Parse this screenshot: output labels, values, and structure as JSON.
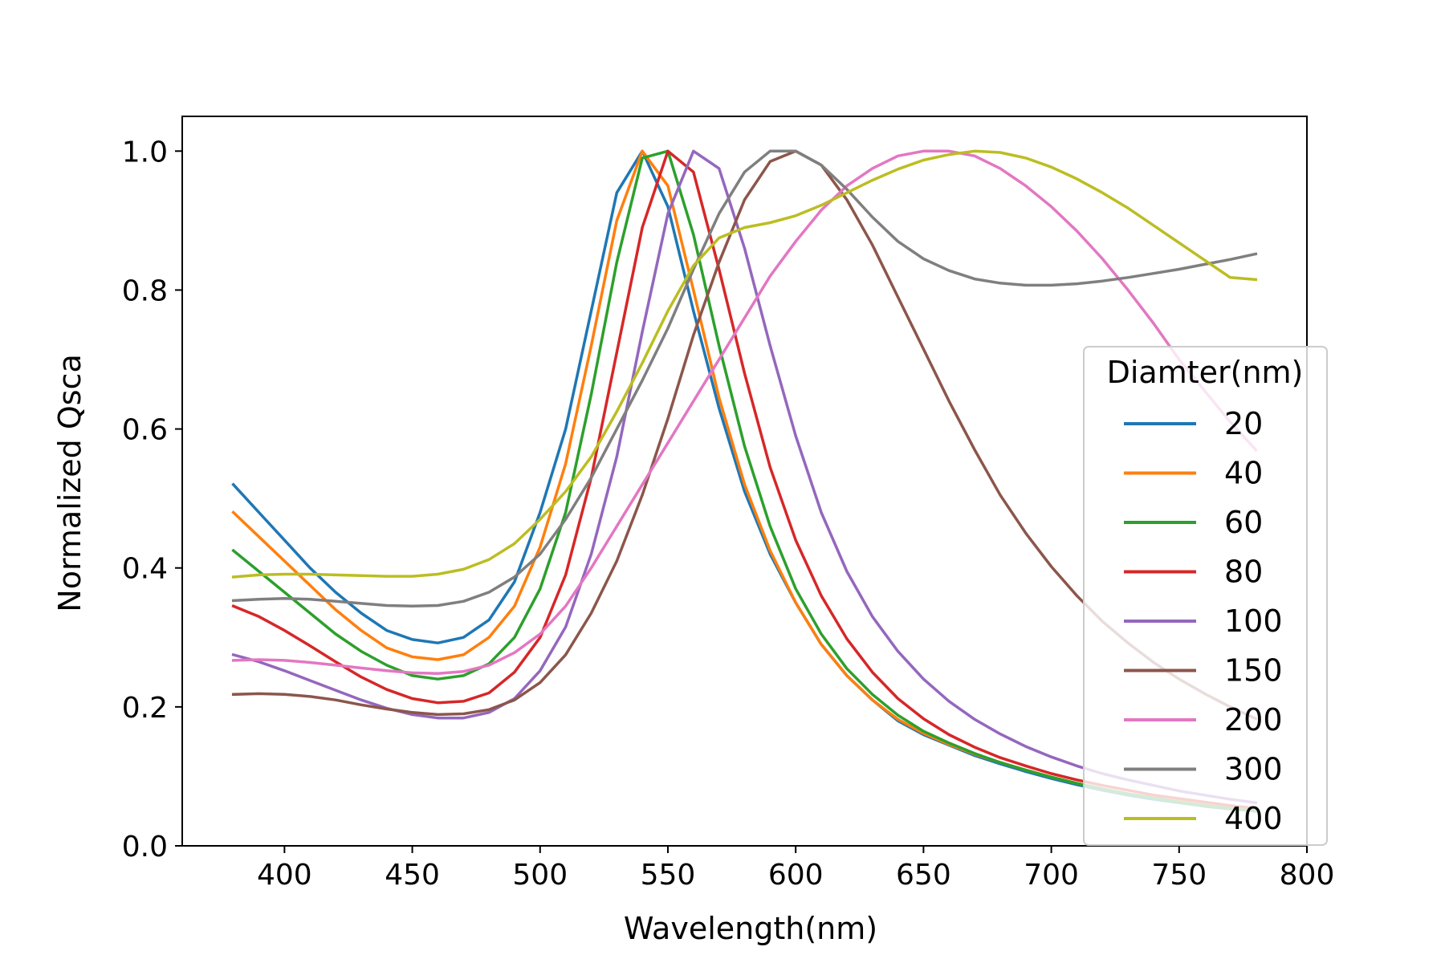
{
  "chart_data": {
    "type": "line",
    "title": "",
    "xlabel": "Wavelength(nm)",
    "ylabel": "Normalized Qsca",
    "xlim": [
      360,
      800
    ],
    "ylim": [
      0.0,
      1.05
    ],
    "xticks": [
      400,
      450,
      500,
      550,
      600,
      650,
      700,
      750,
      800
    ],
    "yticks": [
      0.0,
      0.2,
      0.4,
      0.6,
      0.8,
      1.0
    ],
    "xtick_labels": [
      "400",
      "450",
      "500",
      "550",
      "600",
      "650",
      "700",
      "750",
      "800"
    ],
    "ytick_labels": [
      "0.0",
      "0.2",
      "0.4",
      "0.6",
      "0.8",
      "1.0"
    ],
    "grid": false,
    "legend": {
      "title": "Diamter(nm)",
      "position": "center-right"
    },
    "x": [
      380,
      390,
      400,
      410,
      420,
      430,
      440,
      450,
      460,
      470,
      480,
      490,
      500,
      510,
      520,
      530,
      540,
      550,
      560,
      570,
      580,
      590,
      600,
      610,
      620,
      630,
      640,
      650,
      660,
      670,
      680,
      690,
      700,
      710,
      720,
      730,
      740,
      750,
      760,
      770,
      780
    ],
    "series": [
      {
        "name": "20",
        "color": "#1f77b4",
        "values": [
          0.52,
          0.48,
          0.44,
          0.4,
          0.365,
          0.335,
          0.31,
          0.297,
          0.292,
          0.3,
          0.325,
          0.38,
          0.48,
          0.6,
          0.77,
          0.94,
          1.0,
          0.92,
          0.77,
          0.63,
          0.51,
          0.42,
          0.35,
          0.29,
          0.245,
          0.21,
          0.18,
          0.16,
          0.145,
          0.13,
          0.118,
          0.107,
          0.097,
          0.088,
          0.08,
          0.073,
          0.067,
          0.062,
          0.057,
          0.053,
          0.05
        ]
      },
      {
        "name": "40",
        "color": "#ff7f0e",
        "values": [
          0.48,
          0.445,
          0.41,
          0.375,
          0.34,
          0.31,
          0.285,
          0.272,
          0.268,
          0.275,
          0.3,
          0.345,
          0.43,
          0.55,
          0.72,
          0.9,
          1.0,
          0.95,
          0.8,
          0.645,
          0.52,
          0.425,
          0.35,
          0.29,
          0.245,
          0.21,
          0.182,
          0.162,
          0.146,
          0.132,
          0.12,
          0.109,
          0.099,
          0.09,
          0.082,
          0.075,
          0.069,
          0.064,
          0.059,
          0.055,
          0.051
        ]
      },
      {
        "name": "60",
        "color": "#2ca02c",
        "values": [
          0.425,
          0.395,
          0.365,
          0.335,
          0.305,
          0.28,
          0.26,
          0.245,
          0.24,
          0.245,
          0.262,
          0.3,
          0.37,
          0.48,
          0.65,
          0.84,
          0.99,
          1.0,
          0.88,
          0.72,
          0.575,
          0.46,
          0.37,
          0.305,
          0.255,
          0.218,
          0.188,
          0.165,
          0.148,
          0.133,
          0.12,
          0.109,
          0.099,
          0.09,
          0.082,
          0.075,
          0.069,
          0.063,
          0.058,
          0.054,
          0.05
        ]
      },
      {
        "name": "80",
        "color": "#d62728",
        "values": [
          0.345,
          0.33,
          0.31,
          0.288,
          0.265,
          0.243,
          0.225,
          0.212,
          0.206,
          0.208,
          0.22,
          0.25,
          0.3,
          0.39,
          0.53,
          0.71,
          0.89,
          1.0,
          0.97,
          0.83,
          0.68,
          0.545,
          0.44,
          0.36,
          0.298,
          0.25,
          0.212,
          0.183,
          0.16,
          0.142,
          0.127,
          0.115,
          0.104,
          0.095,
          0.087,
          0.08,
          0.073,
          0.068,
          0.063,
          0.058,
          0.054
        ]
      },
      {
        "name": "100",
        "color": "#9467bd",
        "values": [
          0.275,
          0.265,
          0.252,
          0.238,
          0.224,
          0.21,
          0.198,
          0.189,
          0.184,
          0.184,
          0.192,
          0.212,
          0.252,
          0.315,
          0.42,
          0.56,
          0.74,
          0.91,
          1.0,
          0.975,
          0.86,
          0.72,
          0.59,
          0.48,
          0.395,
          0.33,
          0.28,
          0.24,
          0.208,
          0.182,
          0.161,
          0.143,
          0.128,
          0.115,
          0.104,
          0.095,
          0.087,
          0.079,
          0.073,
          0.067,
          0.062
        ]
      },
      {
        "name": "150",
        "color": "#8c564b",
        "values": [
          0.218,
          0.219,
          0.218,
          0.215,
          0.21,
          0.203,
          0.197,
          0.192,
          0.189,
          0.19,
          0.196,
          0.21,
          0.235,
          0.275,
          0.335,
          0.41,
          0.505,
          0.615,
          0.735,
          0.84,
          0.93,
          0.985,
          1.0,
          0.98,
          0.93,
          0.865,
          0.79,
          0.715,
          0.64,
          0.57,
          0.505,
          0.45,
          0.402,
          0.36,
          0.323,
          0.292,
          0.264,
          0.24,
          0.219,
          0.2,
          0.183
        ]
      },
      {
        "name": "200",
        "color": "#e377c2",
        "values": [
          0.267,
          0.268,
          0.267,
          0.264,
          0.26,
          0.256,
          0.252,
          0.249,
          0.248,
          0.251,
          0.26,
          0.278,
          0.305,
          0.345,
          0.4,
          0.46,
          0.52,
          0.58,
          0.64,
          0.7,
          0.76,
          0.82,
          0.87,
          0.915,
          0.95,
          0.975,
          0.993,
          1.0,
          1.0,
          0.993,
          0.975,
          0.95,
          0.92,
          0.885,
          0.845,
          0.8,
          0.752,
          0.7,
          0.655,
          0.61,
          0.57
        ]
      },
      {
        "name": "300",
        "color": "#7f7f7f",
        "values": [
          0.353,
          0.355,
          0.356,
          0.355,
          0.352,
          0.349,
          0.346,
          0.345,
          0.346,
          0.352,
          0.365,
          0.387,
          0.42,
          0.47,
          0.53,
          0.6,
          0.67,
          0.745,
          0.83,
          0.91,
          0.97,
          1.0,
          1.0,
          0.98,
          0.945,
          0.905,
          0.87,
          0.845,
          0.828,
          0.816,
          0.81,
          0.807,
          0.807,
          0.809,
          0.813,
          0.818,
          0.824,
          0.83,
          0.837,
          0.844,
          0.852
        ]
      },
      {
        "name": "400",
        "color": "#bcbd22",
        "values": [
          0.387,
          0.39,
          0.391,
          0.391,
          0.39,
          0.389,
          0.388,
          0.388,
          0.391,
          0.398,
          0.412,
          0.435,
          0.47,
          0.51,
          0.56,
          0.625,
          0.695,
          0.77,
          0.835,
          0.875,
          0.89,
          0.897,
          0.907,
          0.922,
          0.94,
          0.958,
          0.974,
          0.987,
          0.995,
          1.0,
          0.998,
          0.99,
          0.977,
          0.96,
          0.94,
          0.918,
          0.893,
          0.868,
          0.843,
          0.818,
          0.815
        ]
      }
    ]
  }
}
